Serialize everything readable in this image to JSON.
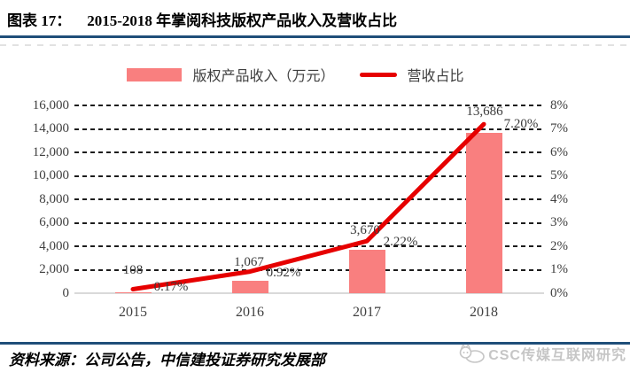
{
  "header": {
    "label": "图表 17：",
    "title": "2015-2018 年掌阅科技版权产品收入及营收占比"
  },
  "legend": {
    "bar_label": "版权产品收入（万元）",
    "line_label": "营收占比"
  },
  "chart_data": {
    "type": "combo-bar-line",
    "categories": [
      "2015",
      "2016",
      "2017",
      "2018"
    ],
    "series": [
      {
        "name": "版权产品收入（万元）",
        "chart_type": "bar",
        "axis": "left",
        "color": "#F97F7F",
        "values": [
          108,
          1067,
          3670,
          13686
        ],
        "labels": [
          "108",
          "1,067",
          "3,670",
          "13,686"
        ]
      },
      {
        "name": "营收占比",
        "chart_type": "line",
        "axis": "right",
        "color": "#E60000",
        "values": [
          0.17,
          0.92,
          2.22,
          7.2
        ],
        "labels": [
          "0.17%",
          "0.92%",
          "2.22%",
          "7.20%"
        ]
      }
    ],
    "left_axis": {
      "min": 0,
      "max": 16000,
      "step": 2000,
      "ticks": [
        "16,000",
        "14,000",
        "12,000",
        "10,000",
        "8,000",
        "6,000",
        "4,000",
        "2,000",
        "0"
      ]
    },
    "right_axis": {
      "min": 0,
      "max": 8,
      "step": 1,
      "ticks": [
        "8%",
        "7%",
        "6%",
        "5%",
        "4%",
        "3%",
        "2%",
        "1%",
        "0%"
      ]
    },
    "grid": "horizontal-dashed",
    "legend_position": "top-center"
  },
  "footer": {
    "source": "资料来源：公司公告，中信建投证券研究发展部",
    "watermark": "CSC传媒互联网研究"
  },
  "colors": {
    "accent_rule": "#1F4E79",
    "bar": "#F97F7F",
    "line": "#E60000",
    "text": "#3F3F3F",
    "grid": "#1C1C1C",
    "zero_axis": "#D9D9D9",
    "watermark": "#C6C6C6"
  }
}
